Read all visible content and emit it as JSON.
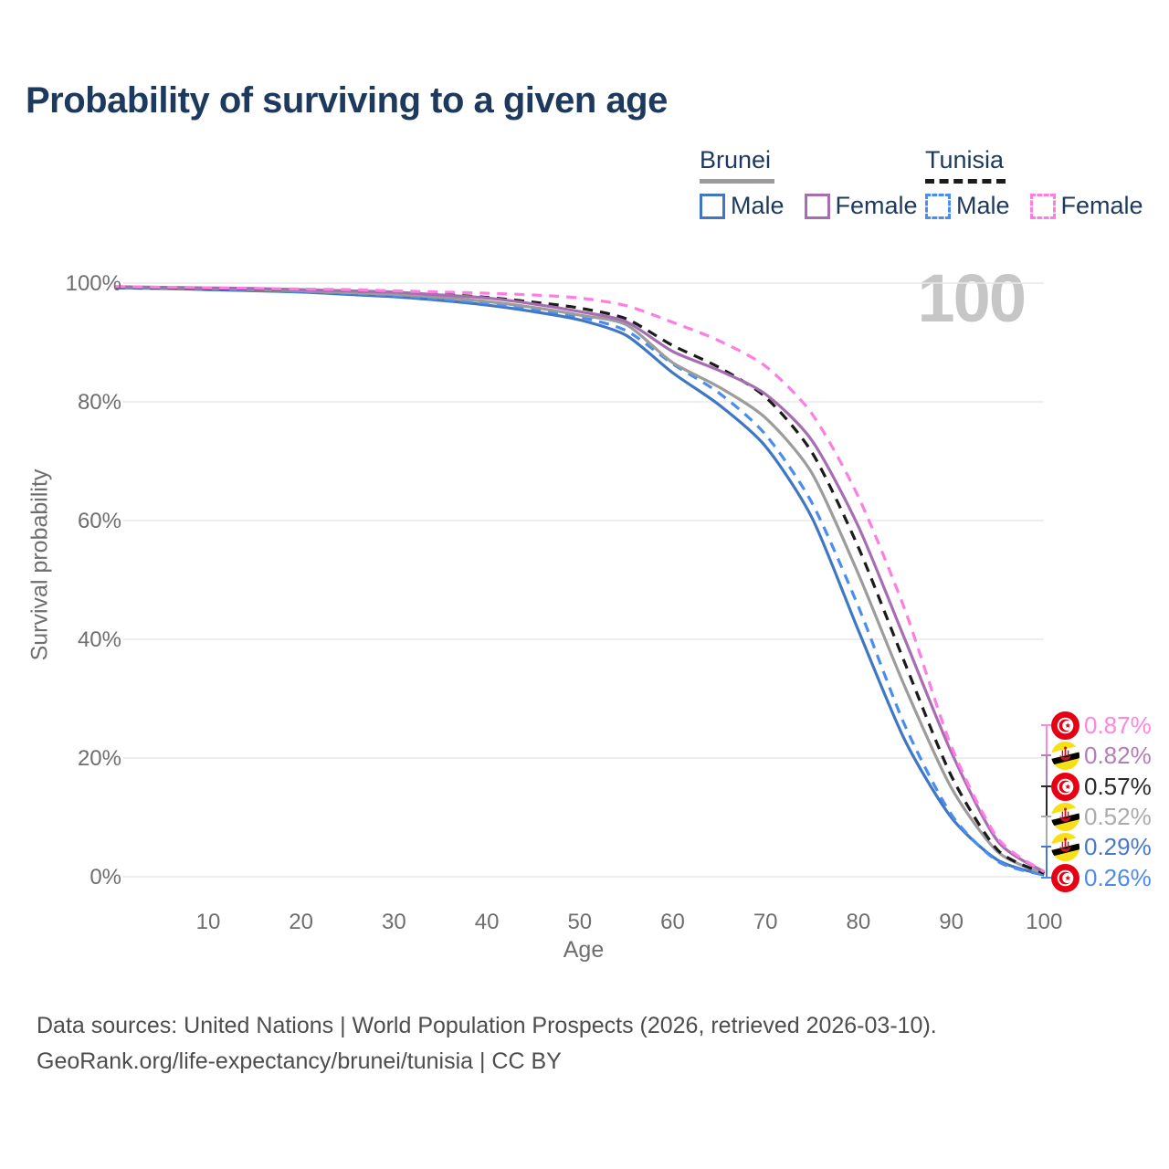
{
  "title": "Probability of surviving to a given age",
  "watermark": "100",
  "theme": {
    "title_color": "#1d3a5e",
    "legend_text_color": "#1d3a5e",
    "axis_text_color": "#6e6e6e",
    "grid_color": "#e9e9e9",
    "watermark_color": "#c6c6c6",
    "footer_color": "#4d4d4d"
  },
  "legend": {
    "groups": [
      {
        "country": "Brunei",
        "underline_style": "solid",
        "underline_color": "#9c9c9c",
        "items": [
          {
            "label": "Male",
            "color": "#4077C5",
            "dashed": false
          },
          {
            "label": "Female",
            "color": "#A76DB2",
            "dashed": false
          }
        ]
      },
      {
        "country": "Tunisia",
        "underline_style": "dashed",
        "underline_color": "#1b1b1b",
        "items": [
          {
            "label": "Male",
            "color": "#4A8DF0",
            "dashed": true
          },
          {
            "label": "Female",
            "color": "#FF7DE3",
            "dashed": true
          }
        ]
      }
    ]
  },
  "y_axis": {
    "label": "Survival probability",
    "ticks": [
      "100%",
      "80%",
      "60%",
      "40%",
      "20%",
      "0%"
    ],
    "tick_values": [
      100,
      80,
      60,
      40,
      20,
      0
    ]
  },
  "x_axis": {
    "label": "Age",
    "ticks": [
      "10",
      "20",
      "30",
      "40",
      "50",
      "60",
      "70",
      "80",
      "90",
      "100"
    ],
    "tick_values": [
      10,
      20,
      30,
      40,
      50,
      60,
      70,
      80,
      90,
      100
    ]
  },
  "end_labels": [
    {
      "value": "0.87%",
      "color": "#FF85E0",
      "flag": "tunisia",
      "series": "tunisia_female"
    },
    {
      "value": "0.82%",
      "color": "#B47CB8",
      "flag": "brunei",
      "series": "brunei_female"
    },
    {
      "value": "0.57%",
      "color": "#2a2a2a",
      "flag": "tunisia",
      "series": "tunisia_total"
    },
    {
      "value": "0.52%",
      "color": "#ababab",
      "flag": "brunei",
      "series": "brunei_total"
    },
    {
      "value": "0.29%",
      "color": "#4878C8",
      "flag": "brunei",
      "series": "brunei_male"
    },
    {
      "value": "0.26%",
      "color": "#4E8BE8",
      "flag": "tunisia",
      "series": "tunisia_male"
    }
  ],
  "footer": {
    "line1": "Data sources: United Nations | World Population Prospects (2026, retrieved 2026-03-10).",
    "line2": "GeoRank.org/life-expectancy/brunei/tunisia | CC BY"
  },
  "chart_data": {
    "type": "line",
    "xlabel": "Age",
    "ylabel": "Survival probability",
    "xlim": [
      0,
      100
    ],
    "ylim": [
      0,
      100
    ],
    "grid": "horizontal",
    "x": [
      0,
      5,
      10,
      15,
      20,
      25,
      30,
      35,
      40,
      45,
      50,
      55,
      60,
      65,
      70,
      75,
      80,
      85,
      90,
      95,
      100
    ],
    "series": [
      {
        "key": "brunei_male",
        "name": "Brunei Male",
        "color": "#4077C5",
        "dashed": false,
        "values": [
          99.2,
          99.1,
          98.9,
          98.7,
          98.5,
          98.1,
          97.7,
          97.1,
          96.3,
          95.2,
          93.8,
          91.2,
          84.9,
          79.5,
          72.5,
          60.5,
          41.5,
          23.0,
          10.0,
          2.8,
          0.29
        ]
      },
      {
        "key": "tunisia_male",
        "name": "Tunisia Male",
        "color": "#4A8DF0",
        "dashed": true,
        "values": [
          99.2,
          99.1,
          99.0,
          98.8,
          98.6,
          98.3,
          97.9,
          97.3,
          96.6,
          95.6,
          94.3,
          92.0,
          86.4,
          81.5,
          74.5,
          63.0,
          45.5,
          25.5,
          10.5,
          2.6,
          0.26
        ]
      },
      {
        "key": "brunei_total",
        "name": "Brunei Total",
        "color": "#9C9C9C",
        "dashed": false,
        "values": [
          99.3,
          99.2,
          99.1,
          98.9,
          98.7,
          98.4,
          98.1,
          97.6,
          96.9,
          95.9,
          94.6,
          93.0,
          86.6,
          82.5,
          77.3,
          68.0,
          51.0,
          32.0,
          15.0,
          4.2,
          0.52
        ]
      },
      {
        "key": "tunisia_total",
        "name": "Tunisia Total",
        "color": "#1B1B1B",
        "dashed": true,
        "values": [
          99.3,
          99.2,
          99.1,
          99.0,
          98.9,
          98.7,
          98.5,
          98.1,
          97.6,
          96.8,
          95.8,
          94.0,
          89.5,
          85.8,
          80.8,
          71.5,
          55.5,
          36.0,
          17.0,
          4.5,
          0.57
        ]
      },
      {
        "key": "brunei_female",
        "name": "Brunei Female",
        "color": "#A76DB2",
        "dashed": false,
        "values": [
          99.4,
          99.3,
          99.2,
          99.1,
          98.9,
          98.7,
          98.5,
          98.0,
          97.5,
          96.5,
          95.2,
          93.5,
          88.5,
          85.3,
          81.3,
          73.5,
          59.0,
          40.0,
          21.0,
          6.0,
          0.82
        ]
      },
      {
        "key": "tunisia_female",
        "name": "Tunisia Female",
        "color": "#FF7DE3",
        "dashed": true,
        "values": [
          99.4,
          99.3,
          99.2,
          99.1,
          99.0,
          98.9,
          98.7,
          98.5,
          98.3,
          98.0,
          97.5,
          96.2,
          93.4,
          90.3,
          86.0,
          78.0,
          64.0,
          45.0,
          22.0,
          6.5,
          0.87
        ]
      }
    ]
  }
}
